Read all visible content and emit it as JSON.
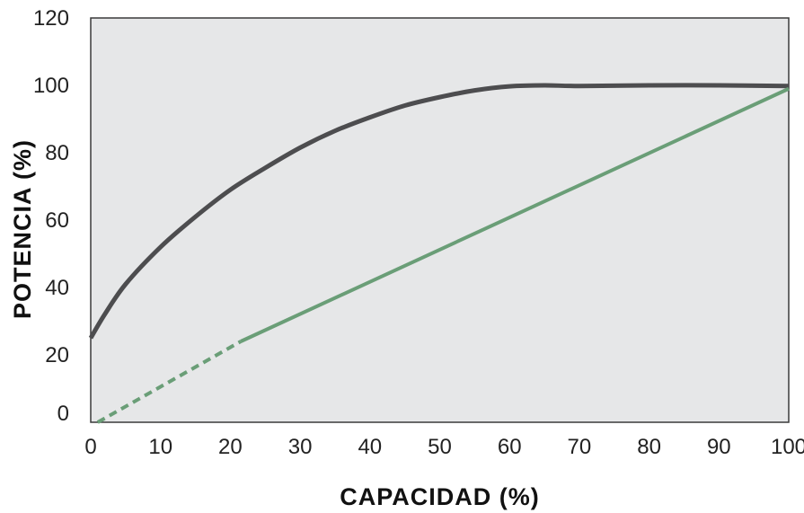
{
  "chart_data": {
    "type": "line",
    "xlabel": "CAPACIDAD (%)",
    "ylabel": "POTENCIA (%)",
    "xlim": [
      0,
      100
    ],
    "ylim": [
      0,
      120
    ],
    "x_ticks": [
      "0",
      "10",
      "20",
      "30",
      "40",
      "50",
      "60",
      "70",
      "80",
      "90",
      "100"
    ],
    "y_ticks": [
      "0",
      "20",
      "40",
      "60",
      "80",
      "100",
      "120"
    ],
    "grid": false,
    "legend": "none",
    "plot_background": "#e6e7e8",
    "series": [
      {
        "color": "#4d4d4f",
        "line_style": "solid",
        "x": [
          0,
          2,
          5,
          10,
          15,
          20,
          25,
          30,
          35,
          40,
          45,
          50,
          55,
          60,
          65,
          70,
          80,
          90,
          100
        ],
        "y": [
          25,
          32,
          41,
          52,
          61,
          69,
          75.5,
          81.5,
          86.5,
          90.5,
          94,
          96.5,
          98.5,
          99.7,
          100,
          99.8,
          100,
          100,
          99.8
        ]
      },
      {
        "color": "#6a9e77",
        "line_style": "solid",
        "x": [
          21.5,
          100
        ],
        "y": [
          24,
          99
        ]
      },
      {
        "color": "#6a9e77",
        "line_style": "dashed",
        "x": [
          1,
          21.5
        ],
        "y": [
          0,
          24
        ]
      }
    ]
  }
}
